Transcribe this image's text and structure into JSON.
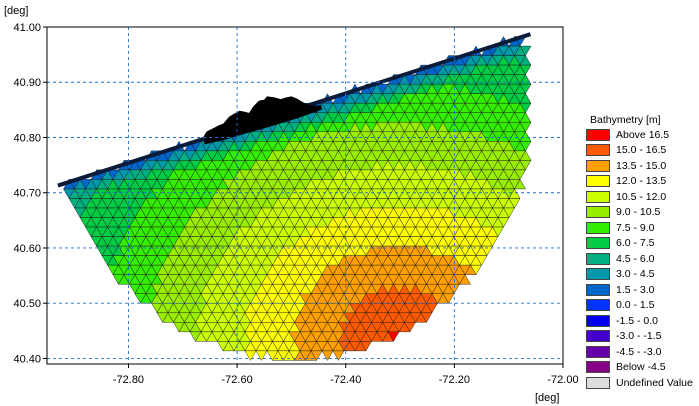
{
  "chart_data": {
    "type": "heatmap",
    "title": "",
    "xunit": "[deg]",
    "yunit": "[deg]",
    "xlim": [
      -72.95,
      -72.0
    ],
    "ylim": [
      40.39,
      41.0
    ],
    "xticks": [
      -72.8,
      -72.6,
      -72.4,
      -72.2,
      -72.0
    ],
    "xtick_labels": [
      "-72.80",
      "-72.60",
      "-72.40",
      "-72.20",
      "-72.00"
    ],
    "yticks": [
      41.0,
      40.9,
      40.8,
      40.7,
      40.6,
      40.5,
      40.4
    ],
    "ytick_labels": [
      "41.00",
      "40.90",
      "40.80",
      "40.70",
      "40.60",
      "40.50",
      "40.40"
    ],
    "grid": true,
    "mesh": {
      "element": "triangular",
      "coastline": [
        [
          -72.93,
          40.713
        ],
        [
          -72.06,
          40.987
        ]
      ],
      "arc_center": [
        -72.495,
        40.85
      ],
      "arc_radius_x": 0.44,
      "arc_radius_y": 0.45,
      "offshore_origin": [
        -72.3,
        40.44
      ],
      "offshore_range": 0.62,
      "max_depth": 16.6
    },
    "land_outline": [
      [
        -72.66,
        40.802
      ],
      [
        -72.655,
        40.811
      ],
      [
        -72.645,
        40.816
      ],
      [
        -72.635,
        40.821
      ],
      [
        -72.625,
        40.825
      ],
      [
        -72.615,
        40.837
      ],
      [
        -72.605,
        40.843
      ],
      [
        -72.595,
        40.848
      ],
      [
        -72.585,
        40.846
      ],
      [
        -72.578,
        40.844
      ],
      [
        -72.57,
        40.856
      ],
      [
        -72.56,
        40.866
      ],
      [
        -72.55,
        40.868
      ],
      [
        -72.545,
        40.874
      ],
      [
        -72.53,
        40.872
      ],
      [
        -72.52,
        40.869
      ],
      [
        -72.51,
        40.872
      ],
      [
        -72.5,
        40.874
      ],
      [
        -72.49,
        40.87
      ],
      [
        -72.48,
        40.864
      ],
      [
        -72.47,
        40.859
      ],
      [
        -72.455,
        40.857
      ],
      [
        -72.446,
        40.858
      ],
      [
        -72.444,
        40.851
      ],
      [
        -72.454,
        40.847
      ],
      [
        -72.47,
        40.842
      ],
      [
        -72.49,
        40.835
      ],
      [
        -72.52,
        40.826
      ],
      [
        -72.55,
        40.817
      ],
      [
        -72.58,
        40.809
      ],
      [
        -72.62,
        40.797
      ],
      [
        -72.66,
        40.788
      ]
    ],
    "legend": {
      "title": "Bathymetry [m]",
      "placement": "right",
      "entries": [
        {
          "label": "Above 16.5",
          "color": "#ff0000"
        },
        {
          "label": "15.0 - 16.5",
          "color": "#ff5a00"
        },
        {
          "label": "13.5 - 15.0",
          "color": "#ffa000"
        },
        {
          "label": "12.0 - 13.5",
          "color": "#ffff00"
        },
        {
          "label": "10.5 - 12.0",
          "color": "#ccff00"
        },
        {
          "label": "9.0 - 10.5",
          "color": "#99ee00"
        },
        {
          "label": "7.5 - 9.0",
          "color": "#33ee00"
        },
        {
          "label": "6.0 - 7.5",
          "color": "#00cc44"
        },
        {
          "label": "4.5 - 6.0",
          "color": "#00b080"
        },
        {
          "label": "3.0 - 4.5",
          "color": "#0099aa"
        },
        {
          "label": "1.5 - 3.0",
          "color": "#0066cc"
        },
        {
          "label": "0.0 - 1.5",
          "color": "#0033ff"
        },
        {
          "label": "-1.5 - 0.0",
          "color": "#0000ee"
        },
        {
          "label": "-3.0 - -1.5",
          "color": "#4400cc"
        },
        {
          "label": "-4.5 - -3.0",
          "color": "#6600aa"
        },
        {
          "label": "Below -4.5",
          "color": "#880088"
        },
        {
          "label": "Undefined Value",
          "color": "#dddddd"
        }
      ]
    }
  }
}
